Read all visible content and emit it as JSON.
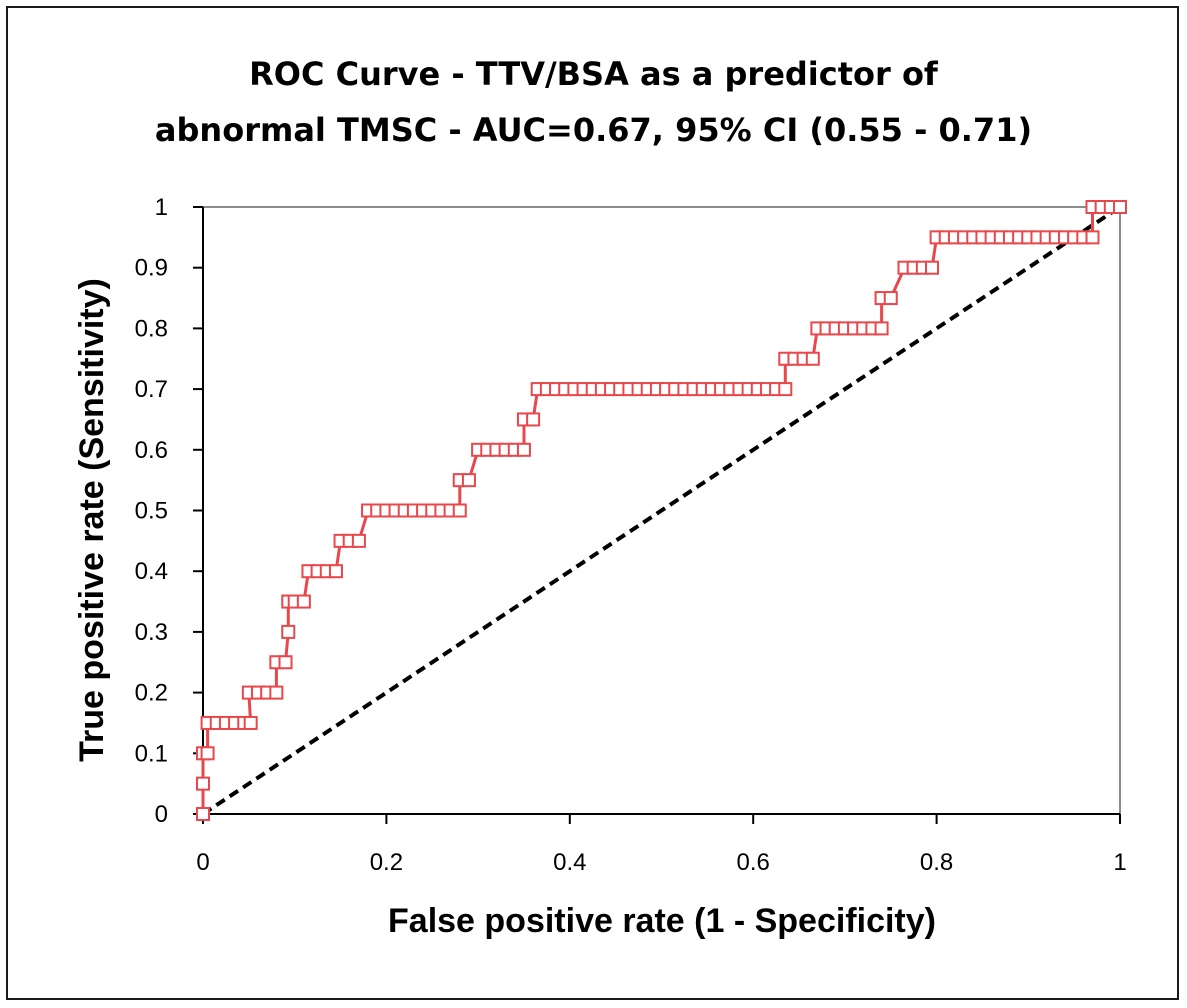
{
  "chart_data": {
    "type": "scatter",
    "title_lines": [
      "ROC Curve - TTV/BSA as a predictor of",
      "abnormal TMSC - AUC=0.67, 95% CI (0.55 - 0.71)"
    ],
    "xlabel": "False positive rate (1 - Specificity)",
    "ylabel": "True positive rate (Sensitivity)",
    "xlim": [
      0,
      1
    ],
    "ylim": [
      0,
      1
    ],
    "x_ticks": [
      "0",
      "0.2",
      "0.4",
      "0.6",
      "0.8",
      "1"
    ],
    "x_tick_values": [
      0,
      0.2,
      0.4,
      0.6,
      0.8,
      1
    ],
    "y_ticks": [
      "0",
      "0.1",
      "0.2",
      "0.3",
      "0.4",
      "0.5",
      "0.6",
      "0.7",
      "0.8",
      "0.9",
      "1"
    ],
    "y_tick_values": [
      0,
      0.1,
      0.2,
      0.3,
      0.4,
      0.5,
      0.6,
      0.7,
      0.8,
      0.9,
      1
    ],
    "grid": false,
    "legend": "none",
    "series": [
      {
        "marker": "open-square",
        "color": "#e8474b",
        "connected": true,
        "points": [
          [
            0,
            0
          ],
          [
            0,
            0.05
          ],
          [
            0,
            0.1
          ],
          [
            0.005,
            0.1
          ],
          [
            0.005,
            0.15
          ],
          [
            0.015,
            0.15
          ],
          [
            0.025,
            0.15
          ],
          [
            0.035,
            0.15
          ],
          [
            0.045,
            0.15
          ],
          [
            0.052,
            0.15
          ],
          [
            0.05,
            0.2
          ],
          [
            0.06,
            0.2
          ],
          [
            0.07,
            0.2
          ],
          [
            0.08,
            0.2
          ],
          [
            0.08,
            0.25
          ],
          [
            0.09,
            0.25
          ],
          [
            0.093,
            0.3
          ],
          [
            0.093,
            0.35
          ],
          [
            0.1,
            0.35
          ],
          [
            0.11,
            0.35
          ],
          [
            0.115,
            0.4
          ],
          [
            0.125,
            0.4
          ],
          [
            0.135,
            0.4
          ],
          [
            0.145,
            0.4
          ],
          [
            0.15,
            0.45
          ],
          [
            0.16,
            0.45
          ],
          [
            0.17,
            0.45
          ],
          [
            0.18,
            0.5
          ],
          [
            0.19,
            0.5
          ],
          [
            0.2,
            0.5
          ],
          [
            0.21,
            0.5
          ],
          [
            0.22,
            0.5
          ],
          [
            0.23,
            0.5
          ],
          [
            0.24,
            0.5
          ],
          [
            0.25,
            0.5
          ],
          [
            0.26,
            0.5
          ],
          [
            0.27,
            0.5
          ],
          [
            0.28,
            0.5
          ],
          [
            0.28,
            0.55
          ],
          [
            0.29,
            0.55
          ],
          [
            0.3,
            0.6
          ],
          [
            0.31,
            0.6
          ],
          [
            0.32,
            0.6
          ],
          [
            0.33,
            0.6
          ],
          [
            0.34,
            0.6
          ],
          [
            0.35,
            0.6
          ],
          [
            0.35,
            0.65
          ],
          [
            0.36,
            0.65
          ],
          [
            0.365,
            0.7
          ],
          [
            0.375,
            0.7
          ],
          [
            0.385,
            0.7
          ],
          [
            0.395,
            0.7
          ],
          [
            0.405,
            0.7
          ],
          [
            0.415,
            0.7
          ],
          [
            0.425,
            0.7
          ],
          [
            0.435,
            0.7
          ],
          [
            0.445,
            0.7
          ],
          [
            0.455,
            0.7
          ],
          [
            0.465,
            0.7
          ],
          [
            0.475,
            0.7
          ],
          [
            0.485,
            0.7
          ],
          [
            0.495,
            0.7
          ],
          [
            0.505,
            0.7
          ],
          [
            0.515,
            0.7
          ],
          [
            0.525,
            0.7
          ],
          [
            0.535,
            0.7
          ],
          [
            0.545,
            0.7
          ],
          [
            0.555,
            0.7
          ],
          [
            0.565,
            0.7
          ],
          [
            0.575,
            0.7
          ],
          [
            0.585,
            0.7
          ],
          [
            0.595,
            0.7
          ],
          [
            0.605,
            0.7
          ],
          [
            0.615,
            0.7
          ],
          [
            0.625,
            0.7
          ],
          [
            0.635,
            0.7
          ],
          [
            0.635,
            0.75
          ],
          [
            0.645,
            0.75
          ],
          [
            0.655,
            0.75
          ],
          [
            0.665,
            0.75
          ],
          [
            0.67,
            0.8
          ],
          [
            0.68,
            0.8
          ],
          [
            0.69,
            0.8
          ],
          [
            0.7,
            0.8
          ],
          [
            0.71,
            0.8
          ],
          [
            0.72,
            0.8
          ],
          [
            0.73,
            0.8
          ],
          [
            0.74,
            0.8
          ],
          [
            0.74,
            0.85
          ],
          [
            0.75,
            0.85
          ],
          [
            0.765,
            0.9
          ],
          [
            0.775,
            0.9
          ],
          [
            0.785,
            0.9
          ],
          [
            0.795,
            0.9
          ],
          [
            0.8,
            0.95
          ],
          [
            0.81,
            0.95
          ],
          [
            0.82,
            0.95
          ],
          [
            0.83,
            0.95
          ],
          [
            0.84,
            0.95
          ],
          [
            0.85,
            0.95
          ],
          [
            0.86,
            0.95
          ],
          [
            0.87,
            0.95
          ],
          [
            0.88,
            0.95
          ],
          [
            0.89,
            0.95
          ],
          [
            0.9,
            0.95
          ],
          [
            0.91,
            0.95
          ],
          [
            0.92,
            0.95
          ],
          [
            0.93,
            0.95
          ],
          [
            0.94,
            0.95
          ],
          [
            0.95,
            0.95
          ],
          [
            0.96,
            0.95
          ],
          [
            0.97,
            0.95
          ],
          [
            0.97,
            1.0
          ],
          [
            0.98,
            1.0
          ],
          [
            0.99,
            1.0
          ],
          [
            1.0,
            1.0
          ]
        ]
      },
      {
        "style": "dashed",
        "color": "#000000",
        "points": [
          [
            0,
            0
          ],
          [
            1,
            1
          ]
        ]
      }
    ]
  }
}
